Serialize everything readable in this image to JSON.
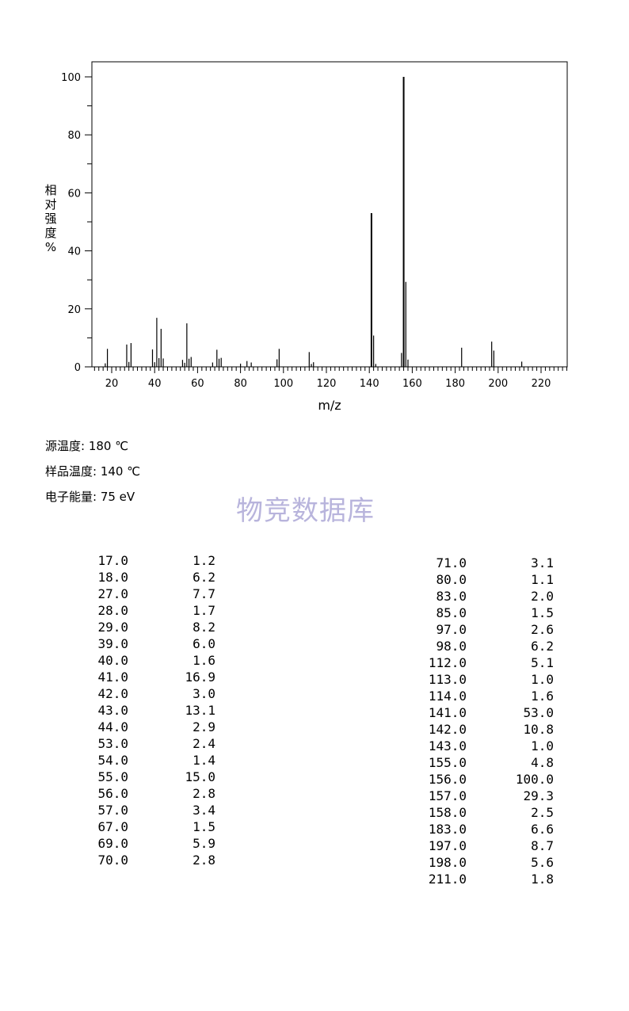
{
  "chart_data": {
    "type": "bar",
    "xlabel": "m/z",
    "ylabel": "相对强度%",
    "xlim": [
      10,
      232
    ],
    "ylim": [
      0,
      105
    ],
    "x_ticks": [
      20,
      40,
      60,
      80,
      100,
      120,
      140,
      160,
      180,
      200,
      220
    ],
    "y_ticks": [
      0,
      20,
      40,
      60,
      80,
      100
    ],
    "peaks": [
      {
        "mz": 17.0,
        "intensity": 1.2
      },
      {
        "mz": 18.0,
        "intensity": 6.2
      },
      {
        "mz": 27.0,
        "intensity": 7.7
      },
      {
        "mz": 28.0,
        "intensity": 1.7
      },
      {
        "mz": 29.0,
        "intensity": 8.2
      },
      {
        "mz": 39.0,
        "intensity": 6.0
      },
      {
        "mz": 40.0,
        "intensity": 1.6
      },
      {
        "mz": 41.0,
        "intensity": 16.9
      },
      {
        "mz": 42.0,
        "intensity": 3.0
      },
      {
        "mz": 43.0,
        "intensity": 13.1
      },
      {
        "mz": 44.0,
        "intensity": 2.9
      },
      {
        "mz": 53.0,
        "intensity": 2.4
      },
      {
        "mz": 54.0,
        "intensity": 1.4
      },
      {
        "mz": 55.0,
        "intensity": 15.0
      },
      {
        "mz": 56.0,
        "intensity": 2.8
      },
      {
        "mz": 57.0,
        "intensity": 3.4
      },
      {
        "mz": 67.0,
        "intensity": 1.5
      },
      {
        "mz": 69.0,
        "intensity": 5.9
      },
      {
        "mz": 70.0,
        "intensity": 2.8
      },
      {
        "mz": 71.0,
        "intensity": 3.1
      },
      {
        "mz": 80.0,
        "intensity": 1.1
      },
      {
        "mz": 83.0,
        "intensity": 2.0
      },
      {
        "mz": 85.0,
        "intensity": 1.5
      },
      {
        "mz": 97.0,
        "intensity": 2.6
      },
      {
        "mz": 98.0,
        "intensity": 6.2
      },
      {
        "mz": 112.0,
        "intensity": 5.1
      },
      {
        "mz": 113.0,
        "intensity": 1.0
      },
      {
        "mz": 114.0,
        "intensity": 1.6
      },
      {
        "mz": 141.0,
        "intensity": 53.0
      },
      {
        "mz": 142.0,
        "intensity": 10.8
      },
      {
        "mz": 143.0,
        "intensity": 1.0
      },
      {
        "mz": 155.0,
        "intensity": 4.8
      },
      {
        "mz": 156.0,
        "intensity": 100.0
      },
      {
        "mz": 157.0,
        "intensity": 29.3
      },
      {
        "mz": 158.0,
        "intensity": 2.5
      },
      {
        "mz": 183.0,
        "intensity": 6.6
      },
      {
        "mz": 197.0,
        "intensity": 8.7
      },
      {
        "mz": 198.0,
        "intensity": 5.6
      },
      {
        "mz": 211.0,
        "intensity": 1.8
      }
    ]
  },
  "conditions": {
    "source_temp": "源温度: 180 ℃",
    "sample_temp": "样品温度: 140 ℃",
    "electron_energy": "电子能量: 75 eV"
  },
  "watermark": "物竞数据库",
  "peak_table": {
    "left": [
      [
        "17.0",
        "1.2"
      ],
      [
        "18.0",
        "6.2"
      ],
      [
        "27.0",
        "7.7"
      ],
      [
        "28.0",
        "1.7"
      ],
      [
        "29.0",
        "8.2"
      ],
      [
        "39.0",
        "6.0"
      ],
      [
        "40.0",
        "1.6"
      ],
      [
        "41.0",
        "16.9"
      ],
      [
        "42.0",
        "3.0"
      ],
      [
        "43.0",
        "13.1"
      ],
      [
        "44.0",
        "2.9"
      ],
      [
        "53.0",
        "2.4"
      ],
      [
        "54.0",
        "1.4"
      ],
      [
        "55.0",
        "15.0"
      ],
      [
        "56.0",
        "2.8"
      ],
      [
        "57.0",
        "3.4"
      ],
      [
        "67.0",
        "1.5"
      ],
      [
        "69.0",
        "5.9"
      ],
      [
        "70.0",
        "2.8"
      ]
    ],
    "right": [
      [
        "71.0",
        "3.1"
      ],
      [
        "80.0",
        "1.1"
      ],
      [
        "83.0",
        "2.0"
      ],
      [
        "85.0",
        "1.5"
      ],
      [
        "97.0",
        "2.6"
      ],
      [
        "98.0",
        "6.2"
      ],
      [
        "112.0",
        "5.1"
      ],
      [
        "113.0",
        "1.0"
      ],
      [
        "114.0",
        "1.6"
      ],
      [
        "141.0",
        "53.0"
      ],
      [
        "142.0",
        "10.8"
      ],
      [
        "143.0",
        "1.0"
      ],
      [
        "155.0",
        "4.8"
      ],
      [
        "156.0",
        "100.0"
      ],
      [
        "157.0",
        "29.3"
      ],
      [
        "158.0",
        "2.5"
      ],
      [
        "183.0",
        "6.6"
      ],
      [
        "197.0",
        "8.7"
      ],
      [
        "198.0",
        "5.6"
      ],
      [
        "211.0",
        "1.8"
      ]
    ]
  }
}
